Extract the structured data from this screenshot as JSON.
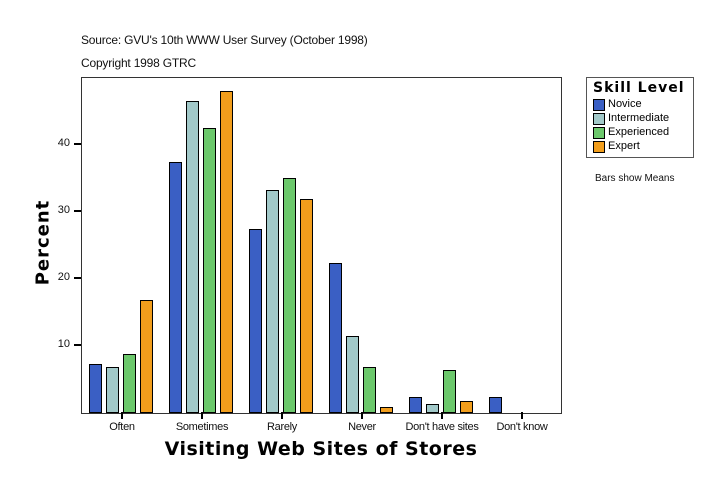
{
  "header": {
    "source": "Source: GVU's 10th WWW User Survey (October 1998)",
    "copyright": "Copyright 1998 GTRC"
  },
  "legend": {
    "title": "Skill Level",
    "items": [
      {
        "label": "Novice",
        "color": "#3a5fc4"
      },
      {
        "label": "Intermediate",
        "color": "#a2c9c9"
      },
      {
        "label": "Experienced",
        "color": "#6cc86c"
      },
      {
        "label": "Expert",
        "color": "#f29e1c"
      }
    ]
  },
  "note": "Bars show Means",
  "axes": {
    "ylabel": "Percent",
    "xlabel": "Visiting Web Sites of Stores",
    "yticks": [
      "10",
      "20",
      "30",
      "40"
    ]
  },
  "chart_data": {
    "type": "bar",
    "title": "",
    "xlabel": "Visiting Web Sites of Stores",
    "ylabel": "Percent",
    "ylim": [
      0,
      50
    ],
    "grid": false,
    "legend_position": "right",
    "legend_title": "Skill Level",
    "categories": [
      "Often",
      "Sometimes",
      "Rarely",
      "Never",
      "Don't have sites",
      "Don't know"
    ],
    "series": [
      {
        "name": "Novice",
        "color": "#3a5fc4",
        "values": [
          7.3,
          37.5,
          27.5,
          22.4,
          2.4,
          2.4
        ]
      },
      {
        "name": "Intermediate",
        "color": "#a2c9c9",
        "values": [
          6.9,
          46.6,
          33.3,
          11.5,
          1.3,
          0
        ]
      },
      {
        "name": "Experienced",
        "color": "#6cc86c",
        "values": [
          8.8,
          42.5,
          35.1,
          6.9,
          6.4,
          0
        ]
      },
      {
        "name": "Expert",
        "color": "#f29e1c",
        "values": [
          16.9,
          48.1,
          31.9,
          0.9,
          1.8,
          0
        ]
      }
    ],
    "annotations": [
      "Source: GVU's 10th WWW User Survey (October 1998)",
      "Copyright 1998 GTRC",
      "Bars show Means"
    ]
  }
}
